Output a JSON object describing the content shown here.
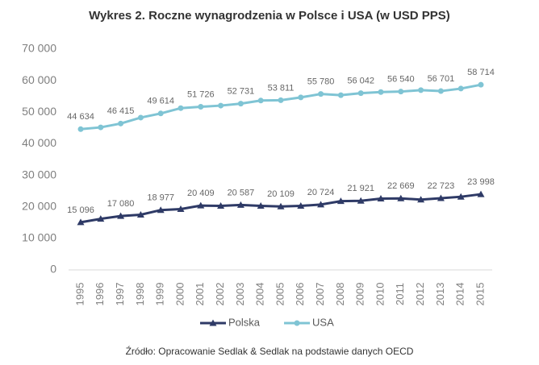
{
  "chart_data": {
    "type": "line",
    "title": "Wykres 2. Roczne wynagrodzenia w Polsce i USA (w USD PPS)",
    "source": "Źródło: Opracowanie Sedlak & Sedlak na podstawie danych OECD",
    "categories": [
      "1995",
      "1996",
      "1997",
      "1998",
      "1999",
      "2000",
      "2001",
      "2002",
      "2003",
      "2004",
      "2005",
      "2006",
      "2007",
      "2008",
      "2009",
      "2010",
      "2011",
      "2012",
      "2013",
      "2014",
      "2015"
    ],
    "series": [
      {
        "name": "Polska",
        "color": "#2e3a66",
        "marker": "triangle",
        "values": [
          15096,
          16200,
          17080,
          17500,
          18977,
          19300,
          20409,
          20300,
          20587,
          20300,
          20109,
          20300,
          20724,
          21800,
          21921,
          22600,
          22669,
          22300,
          22723,
          23200,
          23998
        ],
        "value_labels": [
          "15 096",
          null,
          "17 080",
          null,
          "18 977",
          null,
          "20 409",
          null,
          "20 587",
          null,
          "20 109",
          null,
          "20 724",
          null,
          "21 921",
          null,
          "22 669",
          null,
          "22 723",
          null,
          "23 998"
        ]
      },
      {
        "name": "USA",
        "color": "#7fc4d4",
        "marker": "circle",
        "values": [
          44634,
          45200,
          46415,
          48300,
          49614,
          51300,
          51726,
          52100,
          52731,
          53700,
          53811,
          54700,
          55780,
          55400,
          56042,
          56400,
          56540,
          57000,
          56701,
          57500,
          58714
        ],
        "value_labels": [
          "44 634",
          null,
          "46 415",
          null,
          "49 614",
          null,
          "51 726",
          null,
          "52 731",
          null,
          "53 811",
          null,
          "55 780",
          null,
          "56 042",
          null,
          "56 540",
          null,
          "56 701",
          null,
          "58 714"
        ]
      }
    ],
    "ylim": [
      0,
      70000
    ],
    "yticks": [
      0,
      {
        "value": 10000,
        "label": "10 000"
      },
      {
        "value": 20000,
        "label": "20 000"
      },
      {
        "value": 30000,
        "label": "30 000"
      },
      {
        "value": 40000,
        "label": "40 000"
      },
      {
        "value": 50000,
        "label": "50 000"
      },
      {
        "value": 60000,
        "label": "60 000"
      },
      {
        "value": 70000,
        "label": "70 000"
      }
    ],
    "grid": false,
    "legend": "bottom"
  }
}
